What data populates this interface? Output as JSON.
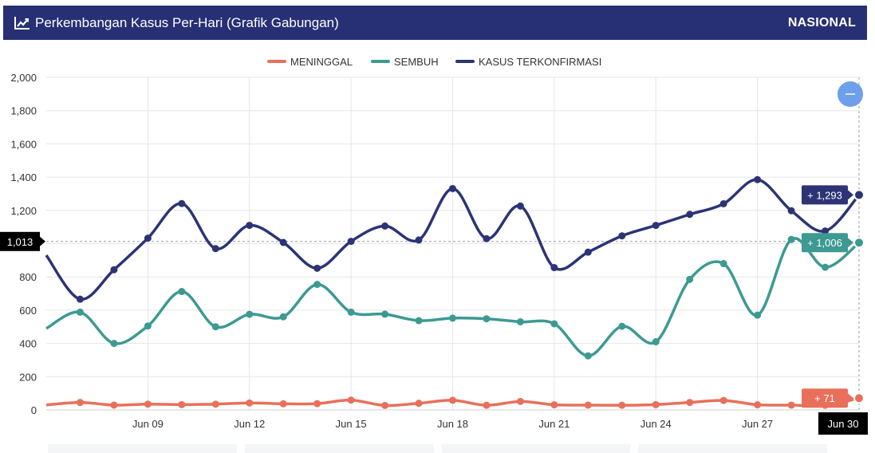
{
  "header": {
    "title": "Perkembangan Kasus Per-Hari (Grafik Gabungan)",
    "badge": "NASIONAL",
    "icon": "line-chart-icon"
  },
  "colors": {
    "header_bg": "#273074",
    "meninggal": "#E8705B",
    "sembuh": "#3C9A92",
    "kasus": "#2C3475",
    "zoom_button": "#6E9FEA",
    "crosshair_label_bg": "#000000"
  },
  "crosshair": {
    "y_label": "1,013",
    "x_label": "Jun 30",
    "y_value": 1013
  },
  "tooltip_labels": {
    "kasus": "+ 1,293",
    "sembuh": "+ 1,006",
    "meninggal": "+ 71"
  },
  "chart_data": {
    "type": "line",
    "x_start_day": 6,
    "x_end_day": 30,
    "x_tick_days": [
      9,
      12,
      15,
      18,
      21,
      24,
      27
    ],
    "x_tick_labels": [
      "Jun 09",
      "Jun 12",
      "Jun 15",
      "Jun 18",
      "Jun 21",
      "Jun 24",
      "Jun 27"
    ],
    "ylim": [
      0,
      2000
    ],
    "y_ticks": [
      0,
      200,
      400,
      600,
      800,
      1000,
      1200,
      1400,
      1600,
      1800,
      2000
    ],
    "y_tick_labels": [
      "0",
      "200",
      "400",
      "600",
      "800",
      "1,000",
      "1,200",
      "1,400",
      "1,600",
      "1,800",
      "2,000"
    ],
    "grid": true,
    "legend_position": "top-center",
    "series": [
      {
        "key": "meninggal",
        "name": "MENINGGAL",
        "x": [
          6,
          7,
          8,
          9,
          10,
          11,
          12,
          13,
          14,
          15,
          16,
          17,
          18,
          19,
          20,
          21,
          22,
          23,
          24,
          25,
          26,
          27,
          28,
          29,
          30
        ],
        "values": [
          30,
          45,
          29,
          35,
          32,
          35,
          42,
          37,
          38,
          59,
          27,
          40,
          58,
          28,
          51,
          31,
          29,
          28,
          32,
          45,
          57,
          31,
          29,
          28,
          71
        ]
      },
      {
        "key": "sembuh",
        "name": "SEMBUH",
        "x": [
          6,
          7,
          8,
          9,
          10,
          11,
          12,
          13,
          14,
          15,
          16,
          17,
          18,
          19,
          20,
          21,
          22,
          23,
          24,
          25,
          26,
          27,
          28,
          29,
          30
        ],
        "values": [
          490,
          588,
          400,
          505,
          712,
          500,
          575,
          560,
          755,
          588,
          576,
          537,
          552,
          548,
          530,
          518,
          325,
          503,
          410,
          785,
          880,
          570,
          1025,
          858,
          1006
        ]
      },
      {
        "key": "kasus",
        "name": "KASUS TERKONFIRMASI",
        "x": [
          6,
          7,
          8,
          9,
          10,
          11,
          12,
          13,
          14,
          15,
          16,
          17,
          18,
          19,
          20,
          21,
          22,
          23,
          24,
          25,
          26,
          27,
          28,
          29,
          30
        ],
        "values": [
          930,
          666,
          843,
          1033,
          1241,
          970,
          1110,
          1007,
          852,
          1014,
          1106,
          1022,
          1331,
          1030,
          1226,
          856,
          949,
          1047,
          1110,
          1176,
          1240,
          1385,
          1198,
          1076,
          1293
        ]
      }
    ]
  }
}
